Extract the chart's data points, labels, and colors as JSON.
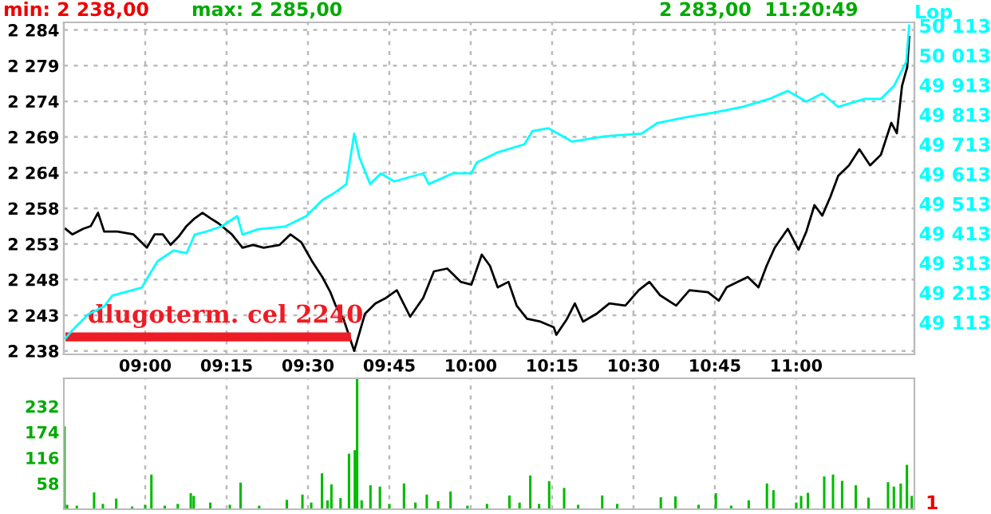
{
  "chart_data": [
    {
      "type": "line",
      "annotations": [
        "min: 2 238,00",
        "max: 2 285,00",
        "2 283,00  11:20:49"
      ],
      "y2label": "Lop",
      "xlim": [
        8.75,
        11.363
      ],
      "xticks": [
        {
          "value": 9,
          "label": "09:00"
        },
        {
          "value": 9.25,
          "label": "09:15"
        },
        {
          "value": 9.5,
          "label": "09:30"
        },
        {
          "value": 9.75,
          "label": "09:45"
        },
        {
          "value": 10,
          "label": "10:00"
        },
        {
          "value": 10.25,
          "label": "10:15"
        },
        {
          "value": 10.5,
          "label": "10:30"
        },
        {
          "value": 10.75,
          "label": "10:45"
        },
        {
          "value": 11,
          "label": "11:00"
        }
      ],
      "ylim": [
        2237.5,
        2285.1
      ],
      "yticks": [
        {
          "value": 2238,
          "label": "2 238"
        },
        {
          "value": 2243.11,
          "label": "2 243"
        },
        {
          "value": 2248.22,
          "label": "2 248"
        },
        {
          "value": 2253.33,
          "label": "2 253"
        },
        {
          "value": 2258.44,
          "label": "2 258"
        },
        {
          "value": 2263.56,
          "label": "2 264"
        },
        {
          "value": 2268.67,
          "label": "2 269"
        },
        {
          "value": 2273.78,
          "label": "2 274"
        },
        {
          "value": 2278.89,
          "label": "2 279"
        },
        {
          "value": 2284,
          "label": "2 284"
        }
      ],
      "y2lim": [
        49005,
        50124
      ],
      "y2ticks": [
        {
          "value": 49113,
          "label": "49 113"
        },
        {
          "value": 49213,
          "label": "49 213"
        },
        {
          "value": 49313,
          "label": "49 313"
        },
        {
          "value": 49413,
          "label": "49 413"
        },
        {
          "value": 49513,
          "label": "49 513"
        },
        {
          "value": 49613,
          "label": "49 613"
        },
        {
          "value": 49713,
          "label": "49 713"
        },
        {
          "value": 49813,
          "label": "49 813"
        },
        {
          "value": 49913,
          "label": "49 913"
        },
        {
          "value": 50013,
          "label": "50 013"
        },
        {
          "value": 50113,
          "label": "50 113"
        }
      ],
      "grid": true,
      "series": [
        {
          "color": "#000000",
          "x": [
            8.755,
            8.776,
            8.809,
            8.833,
            8.855,
            8.874,
            8.915,
            8.964,
            9.005,
            9.029,
            9.054,
            9.078,
            9.103,
            9.127,
            9.152,
            9.176,
            9.201,
            9.225,
            9.266,
            9.299,
            9.331,
            9.364,
            9.413,
            9.446,
            9.479,
            9.512,
            9.544,
            9.569,
            9.585,
            9.609,
            9.634,
            9.642,
            9.675,
            9.707,
            9.74,
            9.773,
            9.814,
            9.854,
            9.887,
            9.928,
            9.969,
            10.002,
            10.034,
            10.059,
            10.083,
            10.116,
            10.141,
            10.173,
            10.214,
            10.255,
            10.263,
            10.296,
            10.32,
            10.345,
            10.386,
            10.426,
            10.475,
            10.516,
            10.549,
            10.581,
            10.631,
            10.672,
            10.729,
            10.762,
            10.786,
            10.851,
            10.884,
            10.909,
            10.934,
            10.974,
            11.007,
            11.031,
            11.056,
            11.08,
            11.105,
            11.129,
            11.162,
            11.194,
            11.227,
            11.26,
            11.292,
            11.309,
            11.325,
            11.341,
            11.347
          ],
          "values": [
            2255.5,
            2254.7,
            2255.5,
            2255.9,
            2257.8,
            2255.1,
            2255.1,
            2254.7,
            2252.8,
            2254.7,
            2254.7,
            2253.2,
            2254.4,
            2255.9,
            2257.0,
            2257.8,
            2257.0,
            2256.3,
            2254.7,
            2252.8,
            2253.2,
            2252.8,
            2253.2,
            2254.7,
            2253.6,
            2250.9,
            2248.6,
            2246.4,
            2244.5,
            2242.6,
            2239.1,
            2238.0,
            2243.3,
            2244.8,
            2245.6,
            2246.7,
            2242.9,
            2245.6,
            2249.4,
            2249.8,
            2247.9,
            2247.5,
            2251.8,
            2250.2,
            2247.1,
            2247.9,
            2244.5,
            2242.6,
            2242.2,
            2241.4,
            2240.3,
            2242.6,
            2244.8,
            2242.2,
            2243.3,
            2244.8,
            2244.5,
            2246.7,
            2247.9,
            2246.0,
            2244.5,
            2246.7,
            2246.4,
            2245.2,
            2247.1,
            2248.6,
            2247.1,
            2250.2,
            2252.8,
            2255.5,
            2252.5,
            2255.1,
            2258.9,
            2257.4,
            2260.1,
            2263.1,
            2264.6,
            2266.9,
            2264.6,
            2266.1,
            2270.7,
            2269.2,
            2276.0,
            2278.7,
            2283.0
          ]
        },
        {
          "color": "#00ffff",
          "axis": "y2",
          "x": [
            8.755,
            8.776,
            8.825,
            8.874,
            8.899,
            8.989,
            9.013,
            9.038,
            9.087,
            9.127,
            9.152,
            9.185,
            9.234,
            9.283,
            9.299,
            9.348,
            9.43,
            9.495,
            9.544,
            9.585,
            9.618,
            9.642,
            9.658,
            9.691,
            9.724,
            9.765,
            9.854,
            9.871,
            9.945,
            10.002,
            10.018,
            10.083,
            10.165,
            10.19,
            10.239,
            10.312,
            10.41,
            10.525,
            10.574,
            10.655,
            10.753,
            10.835,
            10.917,
            10.974,
            11.031,
            11.08,
            11.129,
            11.211,
            11.26,
            11.301,
            11.338,
            11.347
          ],
          "values": [
            49059,
            49086,
            49140,
            49167,
            49203,
            49230,
            49274,
            49319,
            49355,
            49346,
            49409,
            49418,
            49436,
            49471,
            49409,
            49427,
            49436,
            49471,
            49525,
            49552,
            49579,
            49749,
            49669,
            49579,
            49615,
            49588,
            49615,
            49579,
            49615,
            49615,
            49651,
            49686,
            49713,
            49758,
            49767,
            49722,
            49740,
            49749,
            49785,
            49803,
            49821,
            49839,
            49866,
            49893,
            49857,
            49884,
            49839,
            49866,
            49866,
            49911,
            49991,
            50113
          ]
        },
        {
          "name": "dlugoterm. cel 2240",
          "color": "#ee1c24",
          "x": [
            8.755,
            9.632
          ],
          "values": [
            2240,
            2240
          ]
        }
      ]
    },
    {
      "type": "bar",
      "annotations": [
        "1"
      ],
      "color": "#00bb00",
      "xlim": [
        8.75,
        11.363
      ],
      "xticks": [
        {
          "value": 9,
          "label": null
        },
        {
          "value": 9.25,
          "label": null
        },
        {
          "value": 9.5,
          "label": null
        },
        {
          "value": 9.75,
          "label": null
        },
        {
          "value": 10,
          "label": null
        },
        {
          "value": 10.25,
          "label": null
        },
        {
          "value": 10.5,
          "label": null
        },
        {
          "value": 10.75,
          "label": null
        },
        {
          "value": 11,
          "label": null
        }
      ],
      "ylim": [
        0,
        295
      ],
      "yticks": [
        58,
        116,
        174,
        232
      ],
      "grid": "x",
      "tick_labels": "y",
      "x": [
        8.752,
        8.76,
        8.79,
        8.843,
        8.87,
        8.911,
        8.96,
        9.0,
        9.019,
        9.06,
        9.1,
        9.14,
        9.149,
        9.2,
        9.26,
        9.293,
        9.35,
        9.435,
        9.483,
        9.51,
        9.543,
        9.56,
        9.572,
        9.6,
        9.626,
        9.644,
        9.651,
        9.665,
        9.692,
        9.721,
        9.75,
        9.795,
        9.83,
        9.865,
        9.9,
        9.938,
        9.99,
        10.05,
        10.119,
        10.15,
        10.183,
        10.21,
        10.241,
        10.287,
        10.33,
        10.404,
        10.45,
        10.584,
        10.629,
        10.7,
        10.753,
        10.8,
        10.854,
        10.91,
        10.93,
        11.0,
        11.015,
        11.036,
        11.086,
        11.113,
        11.141,
        11.183,
        11.222,
        11.282,
        11.3,
        11.321,
        11.34,
        11.355
      ],
      "values": [
        187,
        10,
        8,
        38,
        12,
        24,
        6,
        10,
        78,
        8,
        12,
        36,
        30,
        15,
        10,
        60,
        8,
        21,
        33,
        15,
        81,
        20,
        56,
        25,
        125,
        133,
        295,
        20,
        54,
        51,
        12,
        58,
        15,
        33,
        18,
        40,
        8,
        12,
        31,
        15,
        76,
        12,
        63,
        48,
        10,
        31,
        12,
        27,
        29,
        10,
        36,
        8,
        20,
        58,
        43,
        15,
        30,
        37,
        74,
        78,
        64,
        54,
        26,
        61,
        51,
        58,
        100,
        30
      ]
    }
  ]
}
